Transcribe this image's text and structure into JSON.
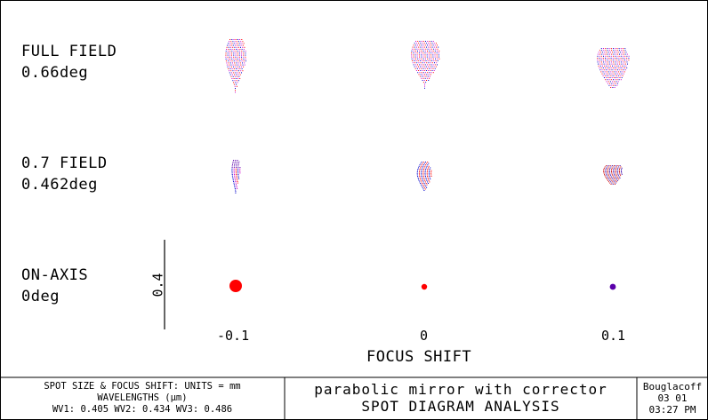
{
  "rows": [
    {
      "label1": "FULL FIELD",
      "label2": "0.66deg"
    },
    {
      "label1": "0.7 FIELD",
      "label2": "0.462deg"
    },
    {
      "label1": "ON-AXIS",
      "label2": "0deg"
    }
  ],
  "focus_ticks": [
    "-0.1",
    "0",
    "0.1"
  ],
  "axis_title": "FOCUS SHIFT",
  "scale_bar_label": "0.4",
  "footer": {
    "left": {
      "line1": "SPOT SIZE & FOCUS SHIFT: UNITS = mm",
      "line2": "WAVELENGTHS (μm)",
      "line3": "WV1: 0.405 WV2: 0.434 WV3: 0.486"
    },
    "center": {
      "line1": "parabolic mirror with corrector",
      "line2": "SPOT DIAGRAM ANALYSIS"
    },
    "right": {
      "line1": "Bouglacoff",
      "line2": "03  01",
      "line3": "03:27 PM"
    }
  },
  "colors": {
    "wv1": "#0000cc",
    "wv2": "#cc00cc",
    "wv3": "#ff0000"
  }
}
